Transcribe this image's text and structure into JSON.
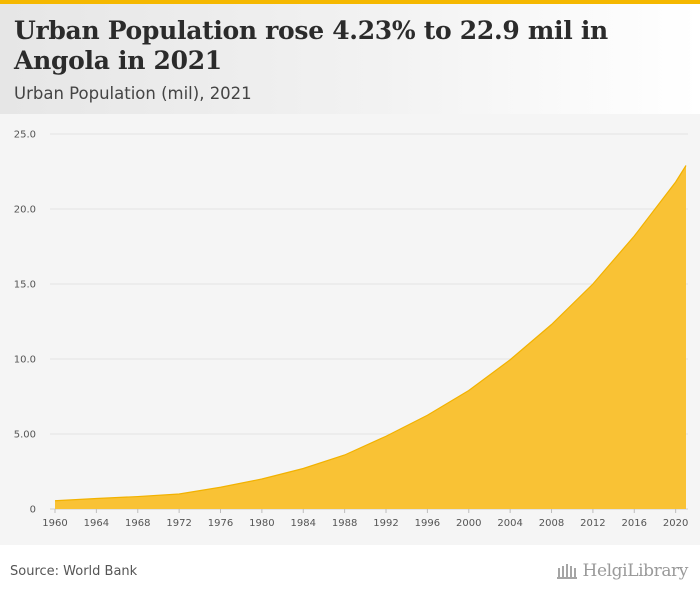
{
  "header": {
    "title": "Urban Population rose 4.23% to 22.9 mil in Angola in 2021",
    "subtitle": "Urban Population (mil), 2021"
  },
  "footer": {
    "source": "Source: World Bank",
    "logo_text": "HelgiLibrary"
  },
  "colors": {
    "accent": "#f5b800",
    "area_fill": "#f9c235",
    "area_stroke": "#f2b200",
    "grid": "#e3e3e3"
  },
  "chart_data": {
    "type": "area",
    "title": "Urban Population rose 4.23% to 22.9 mil in Angola in 2021",
    "subtitle": "Urban Population (mil), 2021",
    "xlabel": "",
    "ylabel": "",
    "ylim": [
      0,
      25
    ],
    "xlim": [
      1960,
      2021
    ],
    "grid": true,
    "y_ticks": [
      0,
      5,
      10,
      15,
      20,
      25
    ],
    "y_tick_labels": [
      "0",
      "5.00",
      "10.0",
      "15.0",
      "20.0",
      "25.0"
    ],
    "x_ticks": [
      1960,
      1964,
      1968,
      1972,
      1976,
      1980,
      1984,
      1988,
      1992,
      1996,
      2000,
      2004,
      2008,
      2012,
      2016,
      2020
    ],
    "x_tick_labels": [
      "1960",
      "1964",
      "1968",
      "1972",
      "1976",
      "1980",
      "1984",
      "1988",
      "1992",
      "1996",
      "2000",
      "2004",
      "2008",
      "2012",
      "2016",
      "2020"
    ],
    "series": [
      {
        "name": "Urban Population (mil)",
        "x": [
          1960,
          1964,
          1968,
          1972,
          1976,
          1980,
          1984,
          1988,
          1992,
          1996,
          2000,
          2004,
          2008,
          2012,
          2016,
          2020,
          2021
        ],
        "values": [
          0.55,
          0.7,
          0.83,
          1.0,
          1.45,
          2.0,
          2.7,
          3.6,
          4.85,
          6.25,
          7.9,
          9.95,
          12.3,
          15.0,
          18.2,
          21.8,
          22.9
        ]
      }
    ]
  }
}
